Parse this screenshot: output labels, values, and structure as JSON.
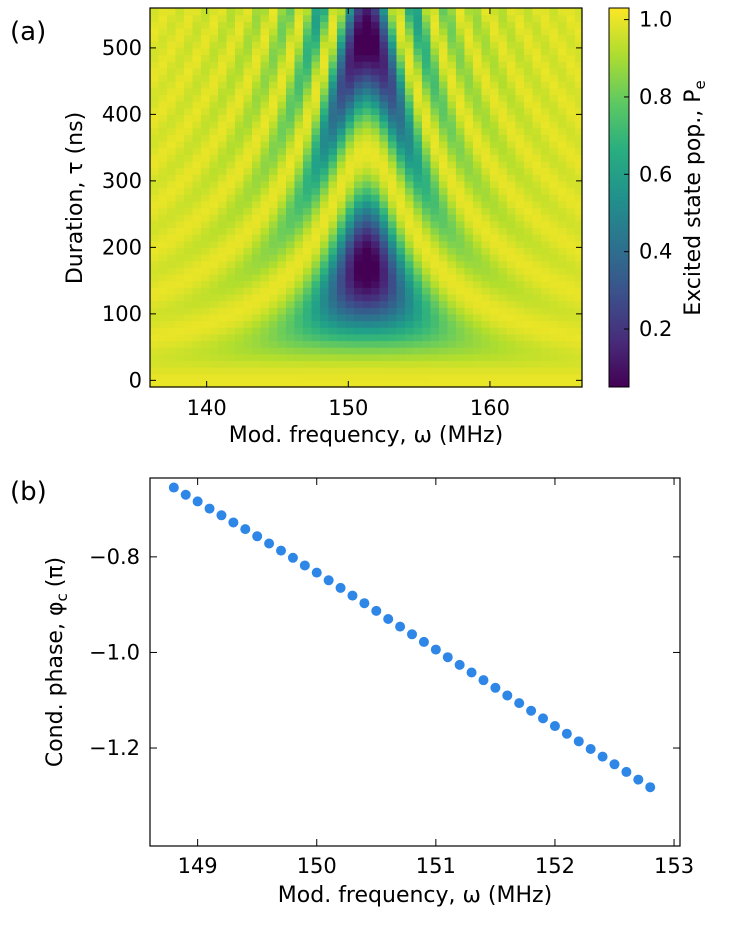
{
  "chart_data": [
    {
      "panel": "(a)",
      "type": "heatmap",
      "xlabel": "Mod. frequency, ω (MHz)",
      "ylabel": "Duration, τ (ns)",
      "colorbar_label": "Excited state pop., P",
      "colorbar_label_sub": "e",
      "xlim": [
        136,
        166.5
      ],
      "ylim": [
        -10,
        560
      ],
      "xticks": [
        140,
        150,
        160
      ],
      "yticks": [
        0,
        100,
        200,
        300,
        400,
        500
      ],
      "colorbar_range": [
        0.05,
        1.03
      ],
      "colorbar_ticks": [
        "0.2",
        "0.4",
        "0.6",
        "0.8",
        "1.0"
      ],
      "colorbar_tick_values": [
        0.2,
        0.4,
        0.6,
        0.8,
        1.0
      ],
      "colormap": "viridis",
      "model": {
        "description": "Chevron pattern of excited-state population vs modulation frequency and pulse duration",
        "center_frequency_mhz": 151.3,
        "rabi_rate_mhz": 2.9,
        "grid": {
          "x_start": 136,
          "x_step": 0.6,
          "x_count": 51,
          "y_start": -10,
          "y_step": 10,
          "y_count": 57
        }
      }
    },
    {
      "panel": "(b)",
      "type": "scatter",
      "xlabel": "Mod. frequency, ω (MHz)",
      "ylabel": "Cond. phase, φ",
      "ylabel_sub": "c",
      "ylabel_unit": "(π)",
      "xlim": [
        148.6,
        153.05
      ],
      "ylim": [
        -1.405,
        -0.635
      ],
      "xticks": [
        149,
        150,
        151,
        152,
        153
      ],
      "yticks": [
        -0.8,
        -1.0,
        -1.2
      ],
      "ytick_labels": [
        "−0.8",
        "−1.0",
        "−1.2"
      ],
      "marker_color": "#2e86e6",
      "x": [
        148.8,
        148.9,
        149.0,
        149.1,
        149.2,
        149.3,
        149.4,
        149.5,
        149.6,
        149.7,
        149.8,
        149.9,
        150.0,
        150.1,
        150.2,
        150.3,
        150.4,
        150.5,
        150.6,
        150.7,
        150.8,
        150.9,
        151.0,
        151.1,
        151.2,
        151.3,
        151.4,
        151.5,
        151.6,
        151.7,
        151.8,
        151.9,
        152.0,
        152.1,
        152.2,
        152.3,
        152.4,
        152.5,
        152.6,
        152.7,
        152.8
      ],
      "y": [
        -0.655,
        -0.67,
        -0.684,
        -0.699,
        -0.713,
        -0.728,
        -0.742,
        -0.757,
        -0.772,
        -0.787,
        -0.802,
        -0.818,
        -0.833,
        -0.849,
        -0.865,
        -0.881,
        -0.897,
        -0.913,
        -0.93,
        -0.946,
        -0.962,
        -0.978,
        -0.994,
        -1.01,
        -1.026,
        -1.042,
        -1.058,
        -1.074,
        -1.09,
        -1.106,
        -1.122,
        -1.138,
        -1.154,
        -1.17,
        -1.186,
        -1.202,
        -1.218,
        -1.234,
        -1.25,
        -1.266,
        -1.282
      ]
    }
  ]
}
